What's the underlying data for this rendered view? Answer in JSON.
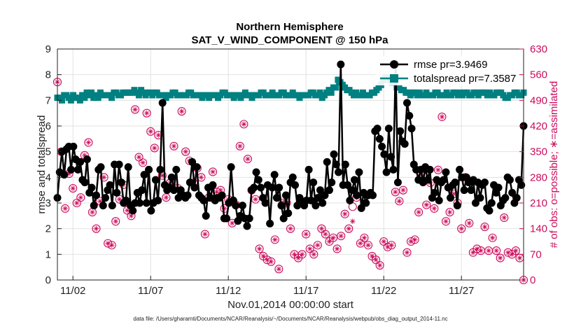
{
  "chart_data": {
    "type": "line",
    "title": "Northern Hemisphere",
    "subtitle": "SAT_V_WIND_COMPONENT @ 150 hPa",
    "xlabel": "Nov.01,2014 00:00:00 start",
    "ylabel": "rmse and totalspread",
    "ylabel_right": "# of obs: o=possible; ∗=assimilated",
    "footnote": "data file: /Users/gharamti/Documents/NCAR/Reanalysis/~/Documents/NCAR/Reanalysis/webpub/obs_diag_output_2014-11.nc",
    "xlim": [
      0,
      30
    ],
    "ylim": [
      0,
      9
    ],
    "ylim_right": [
      0,
      630
    ],
    "x_ticks": [
      1,
      6,
      11,
      16,
      21,
      26
    ],
    "x_tick_labels": [
      "11/02",
      "11/07",
      "11/12",
      "11/17",
      "11/22",
      "11/27"
    ],
    "y_ticks": [
      "0",
      "1",
      "2",
      "3",
      "4",
      "5",
      "6",
      "7",
      "8",
      "9"
    ],
    "y_ticks_right": [
      "0",
      "70",
      "140",
      "210",
      "280",
      "350",
      "420",
      "490",
      "560",
      "630"
    ],
    "grid": true,
    "legend_position": "top-right",
    "series": [
      {
        "name": "rmse",
        "legend": "rmse pr=3.9469",
        "axis": "left",
        "color": "#000000",
        "values": [
          3.2,
          4.2,
          5.0,
          4.1,
          5.1,
          5.2,
          4.3,
          5.2,
          4.7,
          4.3,
          4.6,
          3.9,
          3.8,
          4.7,
          3.4,
          3.6,
          2.9,
          3.3,
          4.3,
          4.4,
          2.9,
          3.2,
          3.5,
          3.7,
          2.9,
          4.5,
          3.4,
          4.5,
          3.8,
          3.0,
          3.1,
          4.4,
          2.9,
          2.7,
          3.0,
          3.4,
          3.0,
          3.5,
          4.1,
          3.0,
          4.3,
          2.7,
          3.0,
          3.9,
          3.1,
          4.3,
          6.9,
          3.7,
          3.5,
          3.6,
          4.0,
          3.5,
          4.3,
          3.2,
          3.5,
          3.3,
          3.2,
          3.3,
          3.8,
          4.6,
          3.6,
          4.4,
          3.3,
          3.2,
          3.1,
          2.5,
          3.6,
          3.2,
          3.7,
          3.1,
          3.2,
          3.2,
          3.3,
          2.4,
          2.4,
          3.0,
          4.4,
          3.1,
          2.9,
          2.3,
          2.5,
          2.9,
          2.4,
          2.1,
          2.4,
          3.5,
          3.6,
          4.2,
          3.9,
          3.6,
          3.2,
          3.0,
          3.7,
          2.2,
          3.6,
          4.1,
          3.2,
          3.6,
          2.9,
          2.4,
          3.3,
          2.6,
          3.8,
          4.0,
          3.7,
          2.9,
          3.2,
          3.0,
          2.9,
          3.1,
          4.3,
          3.1,
          3.8,
          2.9,
          3.2,
          3.5,
          3.0,
          3.3,
          4.6,
          3.5,
          3.8,
          4.9,
          4.5,
          4.2,
          8.4,
          3.7,
          4.5,
          3.7,
          3.1,
          3.5,
          3.9,
          3.3,
          4.2,
          2.8,
          3.4,
          3.0,
          3.3,
          3.4,
          3.3,
          5.8,
          5.9,
          5.5,
          5.2,
          4.9,
          4.2,
          5.9,
          4.8,
          4.3,
          8.4,
          3.8,
          5.8,
          5.4,
          5.3,
          6.9,
          6.4,
          5.9,
          4.5,
          4.3,
          3.9,
          4.3,
          3.8,
          4.4,
          3.9,
          4.3,
          3.2,
          3.4,
          3.9,
          3.1,
          3.8,
          3.9,
          4.2,
          3.6,
          3.2,
          3.7,
          3.8,
          2.9,
          4.3,
          4.0,
          3.5,
          4.0,
          3.8,
          3.5,
          3.9,
          3.0,
          3.8,
          3.2,
          3.7,
          3.8,
          2.8,
          2.7,
          3.0,
          3.7,
          3.4,
          3.6,
          2.9,
          3.1,
          3.2,
          4.0,
          3.9,
          3.4,
          3.0,
          3.2,
          3.9,
          3.7,
          6.0
        ]
      },
      {
        "name": "totalspread",
        "legend": "totalspread pr=7.3587",
        "axis": "left",
        "color": "#008080",
        "values": [
          7.1,
          7.1,
          7.0,
          7.2,
          7.2,
          7.1,
          7.0,
          7.2,
          7.1,
          7.1,
          7.0,
          7.2,
          7.1,
          7.3,
          7.2,
          7.3,
          7.1,
          7.2,
          7.1,
          7.3,
          7.2,
          7.2,
          7.2,
          7.2,
          7.1,
          7.3,
          7.3,
          7.2,
          7.2,
          7.3,
          7.3,
          7.3,
          7.3,
          7.3,
          7.4,
          7.3,
          7.2,
          7.4,
          7.3,
          7.2,
          7.3,
          7.3,
          7.2,
          7.3,
          7.3,
          7.2,
          7.2,
          7.2,
          7.1,
          7.2,
          7.2,
          7.3,
          7.3,
          7.2,
          7.2,
          7.2,
          7.2,
          7.2,
          7.3,
          7.3,
          7.2,
          7.2,
          7.2,
          7.2,
          7.1,
          7.2,
          7.2,
          7.1,
          7.2,
          7.2,
          7.2,
          7.1,
          7.2,
          7.3,
          7.3,
          7.2,
          7.2,
          7.2,
          7.1,
          7.2,
          7.2,
          7.1,
          7.2,
          7.3,
          7.2,
          7.2,
          7.1,
          7.2,
          7.2,
          7.2,
          7.3,
          7.3,
          7.2,
          7.2,
          7.2,
          7.3,
          7.2,
          7.2,
          7.2,
          7.3,
          7.3,
          7.2,
          7.2,
          7.2,
          7.3,
          7.2,
          7.2,
          7.1,
          7.2,
          7.2,
          7.2,
          7.2,
          7.3,
          7.3,
          7.2,
          7.2,
          7.3,
          7.1,
          7.2,
          7.3,
          7.4,
          7.3,
          7.5,
          7.5,
          7.8,
          7.7,
          7.6,
          7.5,
          7.4,
          7.4,
          7.3,
          7.2,
          7.3,
          7.2,
          7.2,
          7.3,
          7.2,
          7.2,
          7.2,
          7.3,
          7.3,
          7.4,
          7.5,
          7.6,
          7.8,
          7.9,
          7.9,
          7.8,
          7.7,
          7.7,
          7.5,
          7.5,
          7.4,
          7.4,
          7.3,
          7.3,
          7.2,
          7.3,
          7.3,
          7.2,
          7.3,
          7.2,
          7.2,
          7.3,
          7.2,
          7.2,
          7.2,
          7.3,
          7.3,
          7.2,
          7.2,
          7.2,
          7.3,
          7.2,
          7.2,
          7.3,
          7.3,
          7.2,
          7.3,
          7.2,
          7.3,
          7.3,
          7.2,
          7.2,
          7.3,
          7.3,
          7.2,
          7.3,
          7.3,
          7.3,
          7.2,
          7.3,
          7.2,
          7.2,
          7.3,
          7.3,
          7.3,
          7.2,
          7.1,
          7.1,
          7.2,
          7.2,
          7.3,
          7.3,
          7.2,
          7.2,
          7.3
        ]
      },
      {
        "name": "obs_possible",
        "legend": "o=possible",
        "axis": "right",
        "color": "#cc0b5b",
        "x": [
          0,
          0.25,
          0.5,
          0.75,
          1,
          1.25,
          1.5,
          1.75,
          2,
          2.25,
          2.5,
          2.75,
          3,
          3.25,
          3.5,
          3.75,
          4,
          4.25,
          4.5,
          4.75,
          5,
          5.25,
          5.5,
          5.75,
          6,
          6.25,
          6.5,
          6.75,
          7,
          7.25,
          7.5,
          7.75,
          8,
          8.25,
          8.5,
          8.75,
          9,
          9.25,
          9.5,
          9.75,
          10,
          10.25,
          10.5,
          10.75,
          11,
          11.25,
          11.5,
          11.75,
          12,
          12.25,
          12.5,
          12.75,
          13,
          13.25,
          13.5,
          13.75,
          14,
          14.25,
          14.5,
          14.75,
          15,
          15.25,
          15.5,
          15.75,
          16,
          16.25,
          16.5,
          16.75,
          17,
          17.25,
          17.5,
          17.75,
          18,
          18.25,
          18.5,
          18.75,
          19,
          19.25,
          19.5,
          19.75,
          20,
          20.25,
          20.5,
          20.75,
          21,
          21.25,
          21.5,
          21.75,
          22,
          22.25,
          22.5,
          22.75,
          23,
          23.25,
          23.5,
          23.75,
          24,
          24.25,
          24.5,
          24.75,
          25,
          25.25,
          25.5,
          25.75,
          26,
          26.25,
          26.5,
          26.75,
          27,
          27.25,
          27.5,
          27.75,
          28,
          28.25,
          28.5,
          28.75,
          29,
          29.25,
          29.5,
          29.75,
          30
        ],
        "values": [
          540,
          350,
          195,
          290,
          250,
          210,
          225,
          340,
          375,
          185,
          140,
          215,
          280,
          100,
          95,
          160,
          220,
          260,
          190,
          175,
          465,
          335,
          320,
          455,
          405,
          360,
          395,
          285,
          225,
          265,
          365,
          250,
          460,
          350,
          325,
          265,
          305,
          280,
          125,
          225,
          295,
          240,
          245,
          195,
          220,
          155,
          205,
          365,
          425,
          330,
          245,
          220,
          85,
          65,
          55,
          50,
          110,
          30,
          210,
          210,
          140,
          70,
          60,
          70,
          125,
          85,
          70,
          95,
          140,
          125,
          105,
          115,
          85,
          120,
          180,
          140,
          200,
          225,
          100,
          115,
          95,
          65,
          55,
          40,
          105,
          90,
          95,
          240,
          215,
          245,
          75,
          105,
          110,
          185,
          285,
          205,
          265,
          195,
          300,
          445,
          160,
          185,
          235,
          210,
          140,
          280,
          155,
          75,
          85,
          80,
          145,
          80,
          115,
          80,
          60,
          170,
          75,
          70,
          80,
          60,
          0
        ]
      },
      {
        "name": "obs_assimilated",
        "legend": "∗=assimilated",
        "axis": "right",
        "color": "#cc0b5b",
        "x": [
          0,
          0.25,
          0.5,
          0.75,
          1,
          1.25,
          1.5,
          1.75,
          2,
          2.25,
          2.5,
          2.75,
          3,
          3.25,
          3.5,
          3.75,
          4,
          4.25,
          4.5,
          4.75,
          5,
          5.25,
          5.5,
          5.75,
          6,
          6.25,
          6.5,
          6.75,
          7,
          7.25,
          7.5,
          7.75,
          8,
          8.25,
          8.5,
          8.75,
          9,
          9.25,
          9.5,
          9.75,
          10,
          10.25,
          10.5,
          10.75,
          11,
          11.25,
          11.5,
          11.75,
          12,
          12.25,
          12.5,
          12.75,
          13,
          13.25,
          13.5,
          13.75,
          14,
          14.25,
          14.5,
          14.75,
          15,
          15.25,
          15.5,
          15.75,
          16,
          16.25,
          16.5,
          16.75,
          17,
          17.25,
          17.5,
          17.75,
          18,
          18.25,
          18.5,
          18.75,
          19,
          19.25,
          19.5,
          19.75,
          20,
          20.25,
          20.5,
          20.75,
          21,
          21.25,
          21.5,
          21.75,
          22,
          22.25,
          22.5,
          22.75,
          23,
          23.25,
          23.5,
          23.75,
          24,
          24.25,
          24.5,
          24.75,
          25,
          25.25,
          25.5,
          25.75,
          26,
          26.25,
          26.5,
          26.75,
          27,
          27.25,
          27.5,
          27.75,
          28,
          28.25,
          28.5,
          28.75,
          29,
          29.25,
          29.5,
          29.75,
          30
        ],
        "values": [
          540,
          350,
          195,
          290,
          250,
          210,
          225,
          340,
          375,
          185,
          140,
          215,
          280,
          100,
          95,
          160,
          220,
          260,
          190,
          175,
          465,
          335,
          320,
          455,
          405,
          360,
          395,
          285,
          225,
          265,
          365,
          250,
          460,
          350,
          325,
          265,
          305,
          280,
          125,
          225,
          295,
          240,
          245,
          195,
          220,
          155,
          205,
          365,
          425,
          330,
          245,
          220,
          85,
          65,
          55,
          50,
          110,
          30,
          210,
          210,
          140,
          70,
          60,
          70,
          125,
          85,
          70,
          95,
          140,
          125,
          105,
          115,
          85,
          120,
          180,
          140,
          160,
          225,
          100,
          115,
          95,
          65,
          55,
          40,
          105,
          90,
          95,
          240,
          215,
          245,
          75,
          105,
          110,
          185,
          285,
          205,
          265,
          195,
          300,
          445,
          160,
          185,
          235,
          210,
          140,
          280,
          155,
          75,
          85,
          80,
          145,
          80,
          115,
          80,
          60,
          170,
          75,
          70,
          80,
          60,
          0
        ]
      }
    ]
  }
}
